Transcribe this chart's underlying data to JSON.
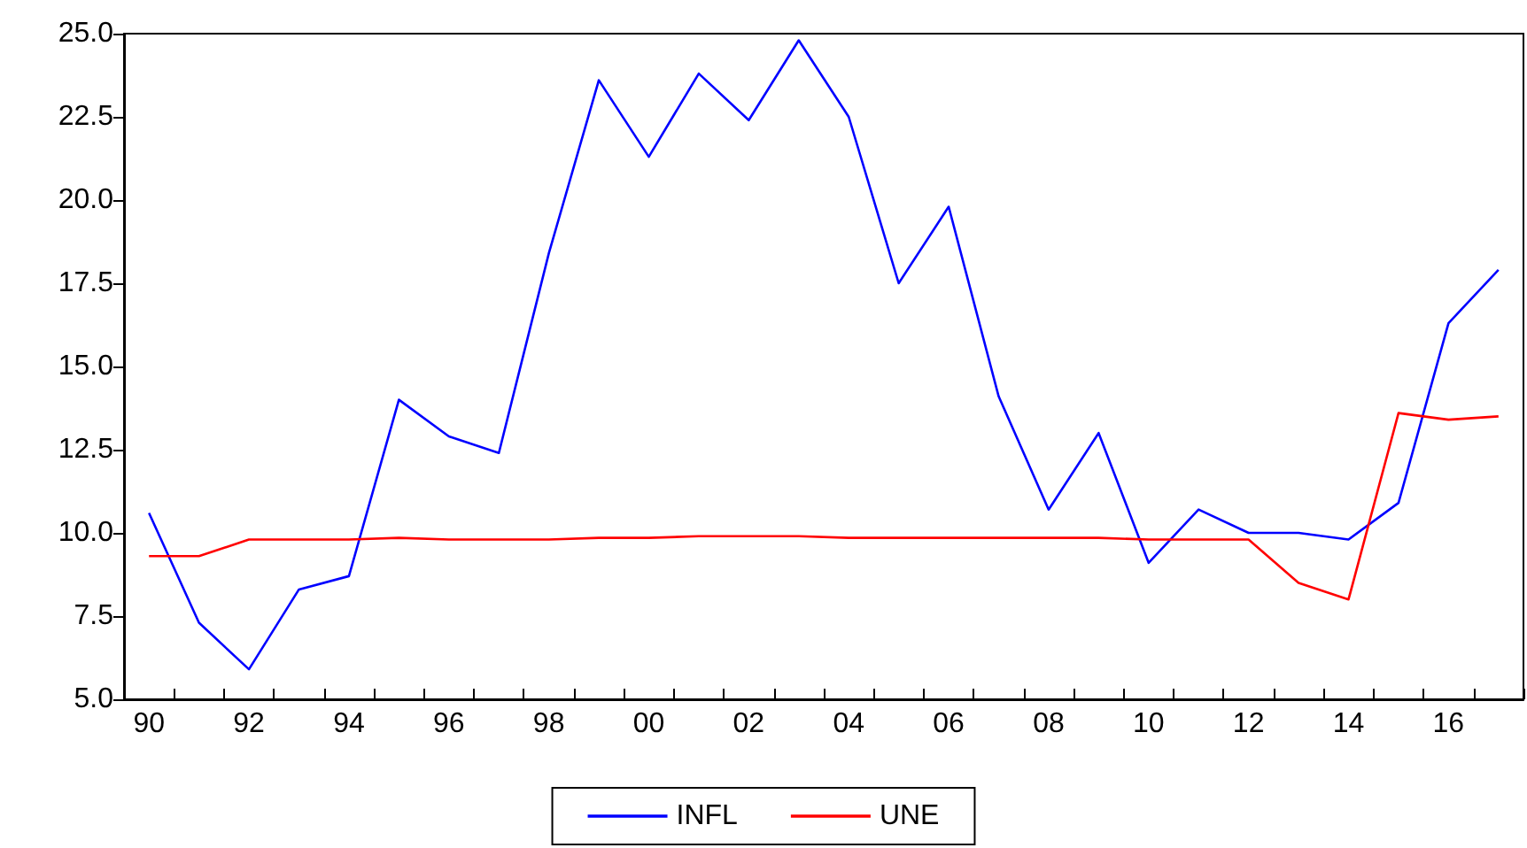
{
  "chart_data": {
    "type": "line",
    "categories": [
      "90",
      null,
      "92",
      null,
      "94",
      null,
      "96",
      null,
      "98",
      null,
      "00",
      null,
      "02",
      null,
      "04",
      null,
      "06",
      null,
      "08",
      null,
      "10",
      null,
      "12",
      null,
      "14",
      null,
      "16",
      null
    ],
    "series": [
      {
        "name": "INFL",
        "color": "#0000ff",
        "values": [
          10.6,
          7.3,
          5.9,
          8.3,
          8.7,
          14.0,
          12.9,
          12.4,
          18.4,
          23.6,
          21.3,
          23.8,
          22.4,
          24.8,
          22.5,
          17.5,
          19.8,
          14.1,
          10.7,
          13.0,
          9.1,
          10.7,
          10.0,
          10.0,
          9.8,
          10.9,
          16.3,
          17.9
        ]
      },
      {
        "name": "UNE",
        "color": "#ff0000",
        "values": [
          9.3,
          9.3,
          9.8,
          9.8,
          9.8,
          9.85,
          9.8,
          9.8,
          9.8,
          9.85,
          9.85,
          9.9,
          9.9,
          9.9,
          9.85,
          9.85,
          9.85,
          9.85,
          9.85,
          9.85,
          9.8,
          9.8,
          9.8,
          8.5,
          8.0,
          13.6,
          13.4,
          13.5
        ]
      }
    ],
    "ylim": [
      5,
      25
    ],
    "yticks": [
      {
        "value": 5,
        "label": "5.0"
      },
      {
        "value": 7.5,
        "label": "7.5"
      },
      {
        "value": 10,
        "label": "10.0"
      },
      {
        "value": 12.5,
        "label": "12.5"
      },
      {
        "value": 15,
        "label": "15.0"
      },
      {
        "value": 17.5,
        "label": "17.5"
      },
      {
        "value": 20,
        "label": "20.0"
      },
      {
        "value": 22.5,
        "label": "22.5"
      },
      {
        "value": 25,
        "label": "25.0"
      }
    ],
    "grid": false,
    "legend": "bottom",
    "marker": "none",
    "line_style": "solid"
  }
}
